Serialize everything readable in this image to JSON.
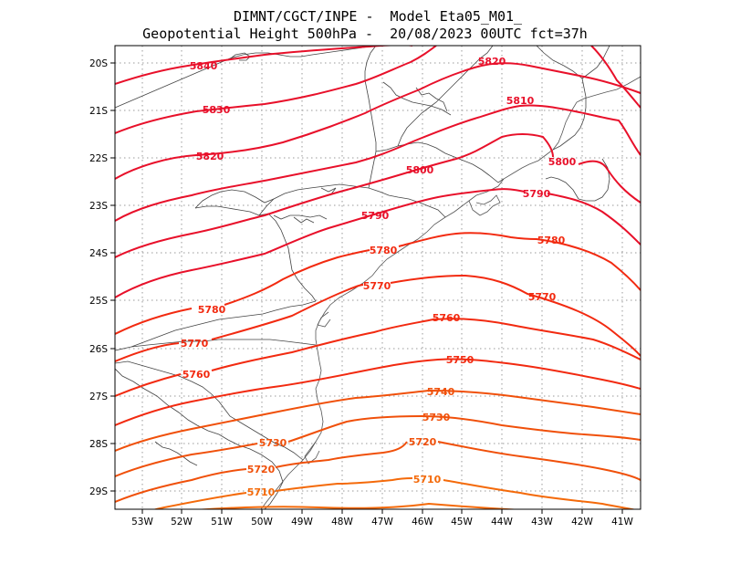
{
  "title": {
    "line1": "DIMNT/CGCT/INPE -  Model Eta05_M01_",
    "line2": "Geopotential Height 500hPa -  20/08/2023 00UTC fct=37h"
  },
  "colors": {
    "high": "#e8102a",
    "mid": "#f22a10",
    "low": "#f0500a",
    "lowest": "#f46a0a",
    "coast": "#555555",
    "grid": "#9a9a9a"
  },
  "axes": {
    "lon_ticks": [
      "53W",
      "52W",
      "51W",
      "50W",
      "49W",
      "48W",
      "47W",
      "46W",
      "45W",
      "44W",
      "43W",
      "42W",
      "41W"
    ],
    "lat_ticks": [
      "20S",
      "21S",
      "22S",
      "23S",
      "24S",
      "25S",
      "26S",
      "27S",
      "28S",
      "29S"
    ]
  },
  "contours": [
    {
      "value": 5840,
      "label": "5840"
    },
    {
      "value": 5830,
      "label": "5830"
    },
    {
      "value": 5820,
      "label": "5820"
    },
    {
      "value": 5820,
      "label": "5820"
    },
    {
      "value": 5810,
      "label": "5810"
    },
    {
      "value": 5800,
      "label": "5800"
    },
    {
      "value": 5800,
      "label": "5800"
    },
    {
      "value": 5790,
      "label": "5790"
    },
    {
      "value": 5790,
      "label": "5790"
    },
    {
      "value": 5780,
      "label": "5780"
    },
    {
      "value": 5780,
      "label": "5780"
    },
    {
      "value": 5780,
      "label": "5780"
    },
    {
      "value": 5770,
      "label": "5770"
    },
    {
      "value": 5770,
      "label": "5770"
    },
    {
      "value": 5770,
      "label": "5770"
    },
    {
      "value": 5760,
      "label": "5760"
    },
    {
      "value": 5760,
      "label": "5760"
    },
    {
      "value": 5750,
      "label": "5750"
    },
    {
      "value": 5740,
      "label": "5740"
    },
    {
      "value": 5730,
      "label": "5730"
    },
    {
      "value": 5730,
      "label": "5730"
    },
    {
      "value": 5720,
      "label": "5720"
    },
    {
      "value": 5720,
      "label": "5720"
    },
    {
      "value": 5710,
      "label": "5710"
    },
    {
      "value": 5710,
      "label": "5710"
    }
  ]
}
